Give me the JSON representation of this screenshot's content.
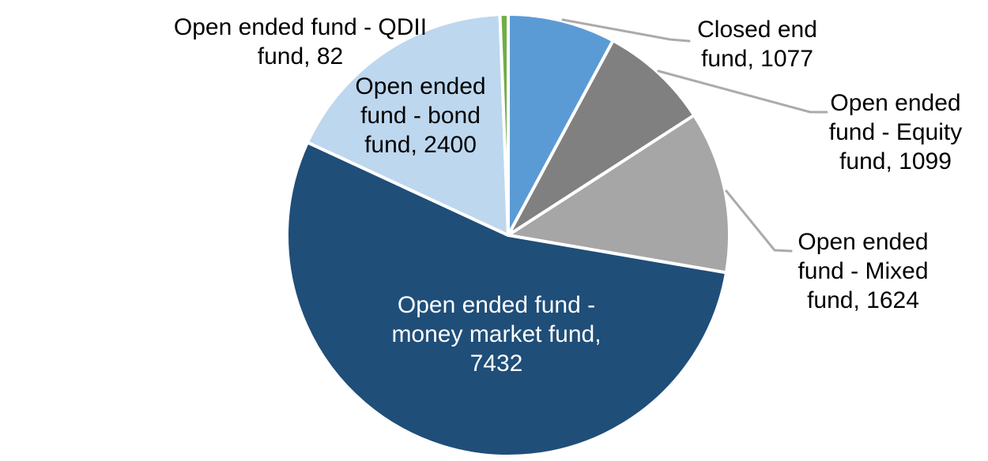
{
  "chart_data": {
    "type": "pie",
    "title": "",
    "total": 13714,
    "start_angle_deg": 0,
    "direction": "clockwise",
    "grid": false,
    "legend_position": "none",
    "slice_border_color": "#FFFFFF",
    "leader_line_color": "#ABABAB",
    "background_color": "#FFFFFF",
    "slices": [
      {
        "name": "Closed end fund",
        "value": 1077,
        "color": "#5B9BD5",
        "label_color": "#000000",
        "label_lines": [
          "Closed end",
          "fund, 1077"
        ]
      },
      {
        "name": "Open ended fund - Equity fund",
        "value": 1099,
        "color": "#808080",
        "label_color": "#000000",
        "label_lines": [
          "Open ended",
          "fund - Equity",
          "fund, 1099"
        ]
      },
      {
        "name": "Open ended fund - Mixed fund",
        "value": 1624,
        "color": "#A6A6A6",
        "label_color": "#000000",
        "label_lines": [
          "Open ended",
          "fund - Mixed",
          "fund, 1624"
        ]
      },
      {
        "name": "Open ended fund - money market fund",
        "value": 7432,
        "color": "#1F4E79",
        "label_color": "#FFFFFF",
        "label_lines": [
          "Open ended fund -",
          "money market fund,",
          "7432"
        ]
      },
      {
        "name": "Open ended fund - bond fund",
        "value": 2400,
        "color": "#BDD7EE",
        "label_color": "#000000",
        "label_lines": [
          "Open ended",
          "fund - bond",
          "fund, 2400"
        ]
      },
      {
        "name": "Open ended fund - QDII fund",
        "value": 82,
        "color": "#70AD47",
        "label_color": "#000000",
        "label_lines": [
          "Open ended fund - QDII",
          "fund, 82"
        ]
      }
    ]
  }
}
